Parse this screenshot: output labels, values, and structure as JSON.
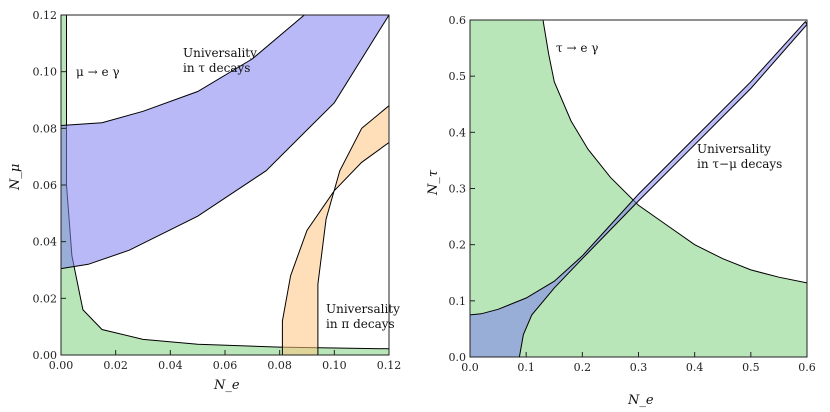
{
  "chart_data": [
    {
      "type": "area",
      "xlabel": "N_e",
      "ylabel": "N_μ",
      "xlim": [
        0,
        0.12
      ],
      "ylim": [
        0,
        0.12
      ],
      "xticks": [
        "0.00",
        "0.02",
        "0.04",
        "0.06",
        "0.08",
        "0.10",
        "0.12"
      ],
      "yticks": [
        "0.00",
        "0.02",
        "0.04",
        "0.06",
        "0.08",
        "0.10",
        "0.12"
      ],
      "grid": false,
      "annotations": [
        {
          "id": "mu-e-gamma",
          "lines": [
            "μ → e γ"
          ]
        },
        {
          "id": "universality-tau",
          "lines": [
            "Universality",
            "in τ decays"
          ]
        },
        {
          "id": "universality-pi",
          "lines": [
            "Universality",
            "in π decays"
          ]
        }
      ],
      "series": [
        {
          "id": "mu-e-gamma-region",
          "color": "#7fd27f",
          "boundary": [
            [
              0.0,
              0.12
            ],
            [
              0.002,
              0.12
            ],
            [
              0.002,
              0.06
            ],
            [
              0.004,
              0.035
            ],
            [
              0.008,
              0.016
            ],
            [
              0.015,
              0.009
            ],
            [
              0.03,
              0.0055
            ],
            [
              0.05,
              0.0038
            ],
            [
              0.08,
              0.0028
            ],
            [
              0.12,
              0.0022
            ],
            [
              0.12,
              0.0
            ],
            [
              0.0,
              0.0
            ]
          ]
        },
        {
          "id": "universality-tau-region",
          "color": "#8080f0",
          "boundary": [
            [
              0.0,
              0.0305
            ],
            [
              0.01,
              0.032
            ],
            [
              0.025,
              0.037
            ],
            [
              0.05,
              0.049
            ],
            [
              0.075,
              0.065
            ],
            [
              0.1,
              0.089
            ],
            [
              0.12,
              0.12
            ],
            [
              0.089,
              0.12
            ],
            [
              0.07,
              0.1045
            ],
            [
              0.05,
              0.093
            ],
            [
              0.03,
              0.086
            ],
            [
              0.015,
              0.082
            ],
            [
              0.0,
              0.081
            ]
          ]
        },
        {
          "id": "universality-pi-region",
          "color": "#ffc482",
          "boundary": [
            [
              0.081,
              0.0
            ],
            [
              0.081,
              0.012
            ],
            [
              0.084,
              0.028
            ],
            [
              0.09,
              0.044
            ],
            [
              0.1,
              0.058
            ],
            [
              0.11,
              0.068
            ],
            [
              0.12,
              0.075
            ],
            [
              0.12,
              0.088
            ],
            [
              0.11,
              0.08
            ],
            [
              0.102,
              0.065
            ],
            [
              0.097,
              0.048
            ],
            [
              0.094,
              0.025
            ],
            [
              0.094,
              0.0
            ]
          ]
        }
      ]
    },
    {
      "type": "area",
      "xlabel": "N_e",
      "ylabel": "N_τ",
      "xlim": [
        0,
        0.6
      ],
      "ylim": [
        0,
        0.6
      ],
      "xticks": [
        "0.0",
        "0.1",
        "0.2",
        "0.3",
        "0.4",
        "0.5",
        "0.6"
      ],
      "yticks": [
        "0.0",
        "0.1",
        "0.2",
        "0.3",
        "0.4",
        "0.5",
        "0.6"
      ],
      "grid": false,
      "annotations": [
        {
          "id": "tau-e-gamma",
          "lines": [
            "τ → e γ"
          ]
        },
        {
          "id": "universality-tau-mu",
          "lines": [
            "Universality",
            "in τ−μ decays"
          ]
        }
      ],
      "series": [
        {
          "id": "tau-e-gamma-region",
          "color": "#7fd27f",
          "boundary": [
            [
              0.0,
              0.0
            ],
            [
              0.0,
              0.6
            ],
            [
              0.13,
              0.6
            ],
            [
              0.14,
              0.54
            ],
            [
              0.15,
              0.49
            ],
            [
              0.18,
              0.42
            ],
            [
              0.21,
              0.37
            ],
            [
              0.25,
              0.32
            ],
            [
              0.3,
              0.27
            ],
            [
              0.35,
              0.235
            ],
            [
              0.4,
              0.2
            ],
            [
              0.45,
              0.175
            ],
            [
              0.5,
              0.155
            ],
            [
              0.55,
              0.142
            ],
            [
              0.6,
              0.132
            ],
            [
              0.6,
              0.0
            ]
          ]
        },
        {
          "id": "universality-tau-mu-region",
          "color": "#8080f0",
          "boundary": [
            [
              0.0,
              0.075
            ],
            [
              0.02,
              0.077
            ],
            [
              0.05,
              0.085
            ],
            [
              0.1,
              0.105
            ],
            [
              0.15,
              0.135
            ],
            [
              0.2,
              0.18
            ],
            [
              0.25,
              0.235
            ],
            [
              0.3,
              0.29
            ],
            [
              0.4,
              0.39
            ],
            [
              0.5,
              0.49
            ],
            [
              0.597,
              0.597
            ],
            [
              0.6,
              0.592
            ],
            [
              0.5,
              0.478
            ],
            [
              0.4,
              0.378
            ],
            [
              0.3,
              0.278
            ],
            [
              0.2,
              0.175
            ],
            [
              0.15,
              0.123
            ],
            [
              0.11,
              0.075
            ],
            [
              0.095,
              0.04
            ],
            [
              0.088,
              0.0
            ],
            [
              0.0,
              0.0
            ]
          ]
        }
      ]
    }
  ]
}
